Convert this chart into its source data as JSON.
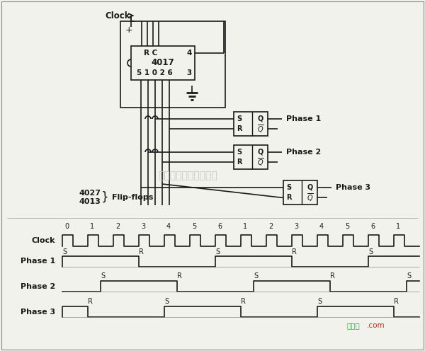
{
  "bg_color": "#f2f2ec",
  "line_color": "#1a1a1a",
  "text_color": "#1a1a1a",
  "watermark_text": "杭州特客科技有限公司",
  "clock_numbers": [
    "0",
    "1",
    "2",
    "3",
    "4",
    "5",
    "6",
    "1",
    "2",
    "3",
    "4",
    "5",
    "6",
    "1"
  ],
  "phase1_markers": [
    [
      "S",
      0
    ],
    [
      "R",
      3
    ],
    [
      "S",
      6
    ],
    [
      "R",
      9
    ],
    [
      "S",
      12
    ]
  ],
  "phase2_markers": [
    [
      "S",
      1.5
    ],
    [
      "R",
      4.5
    ],
    [
      "S",
      7.5
    ],
    [
      "R",
      10.5
    ],
    [
      "S",
      13.5
    ]
  ],
  "phase3_markers": [
    [
      "R",
      1
    ],
    [
      "S",
      4
    ],
    [
      "R",
      7
    ],
    [
      "S",
      10
    ],
    [
      "R",
      13
    ]
  ]
}
